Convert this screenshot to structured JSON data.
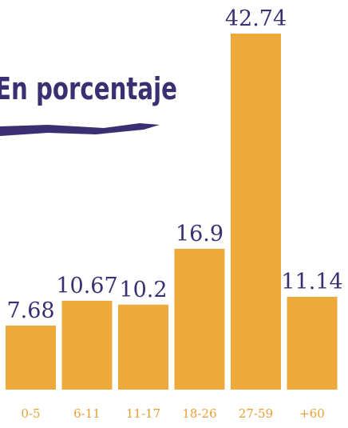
{
  "chart_data": {
    "type": "bar",
    "title": "En porcentaje",
    "categories": [
      "0-5",
      "6-11",
      "11-17",
      "18-26",
      "27-59",
      "+60"
    ],
    "values": [
      7.68,
      10.67,
      10.2,
      16.9,
      42.74,
      11.14
    ],
    "color": "#eda93a"
  }
}
